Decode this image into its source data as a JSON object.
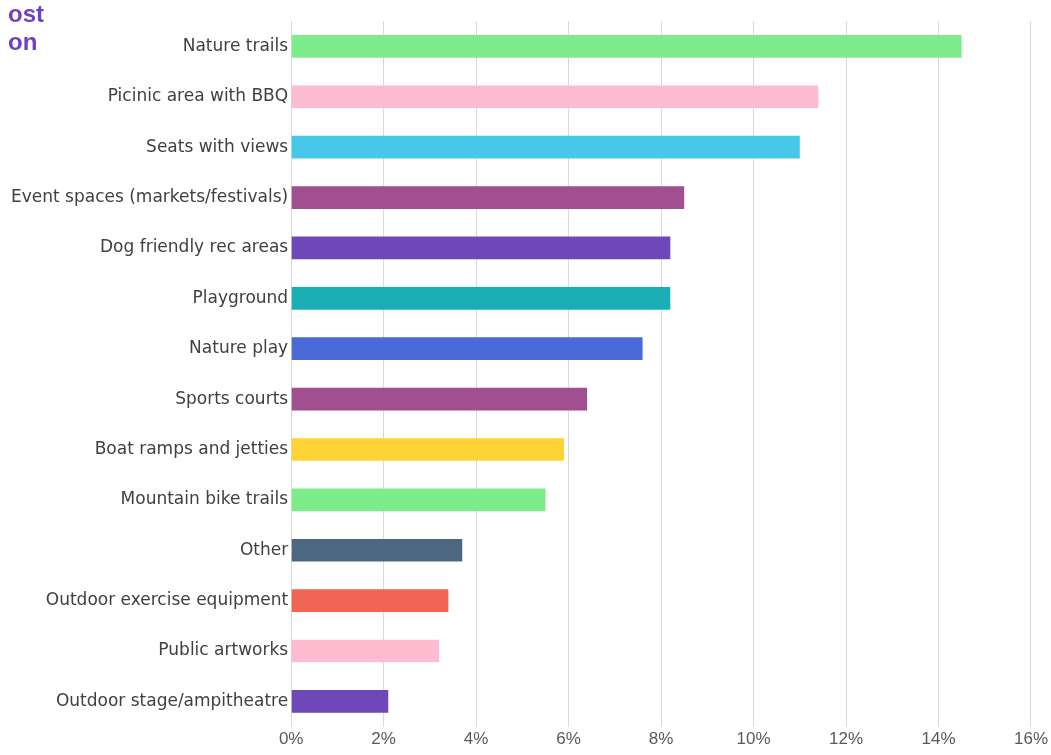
{
  "chart_data": {
    "type": "bar",
    "orientation": "horizontal",
    "title": "ost\non",
    "categories": [
      "Nature trails",
      "Picinic area with BBQ",
      "Seats with views",
      "Event spaces (markets/festivals)",
      "Dog friendly rec areas",
      "Playground",
      "Nature play",
      "Sports courts",
      "Boat ramps and jetties",
      "Mountain bike trails",
      "Other",
      "Outdoor exercise equipment",
      "Public artworks",
      "Outdoor stage/ampitheatre"
    ],
    "values": [
      14.5,
      11.4,
      11.0,
      8.5,
      8.2,
      8.2,
      7.6,
      6.4,
      5.9,
      5.5,
      3.7,
      3.4,
      3.2,
      2.1
    ],
    "colors": [
      "#7fec8c",
      "#fdbcd0",
      "#48c8e8",
      "#a24f92",
      "#6e47b8",
      "#1aafb4",
      "#4a6ad8",
      "#a24f92",
      "#fdd335",
      "#7fec8c",
      "#4e6780",
      "#f06553",
      "#fdbcd0",
      "#6e47b8"
    ],
    "xlim": [
      0,
      16
    ],
    "xticks": [
      {
        "value": 0,
        "label": "0%"
      },
      {
        "value": 2,
        "label": "2%"
      },
      {
        "value": 4,
        "label": "4%"
      },
      {
        "value": 6,
        "label": "6%"
      },
      {
        "value": 8,
        "label": "8%"
      },
      {
        "value": 10,
        "label": "10%"
      },
      {
        "value": 12,
        "label": "12%"
      },
      {
        "value": 14,
        "label": "14%"
      },
      {
        "value": 16,
        "label": "16%"
      }
    ],
    "grid": "x"
  }
}
